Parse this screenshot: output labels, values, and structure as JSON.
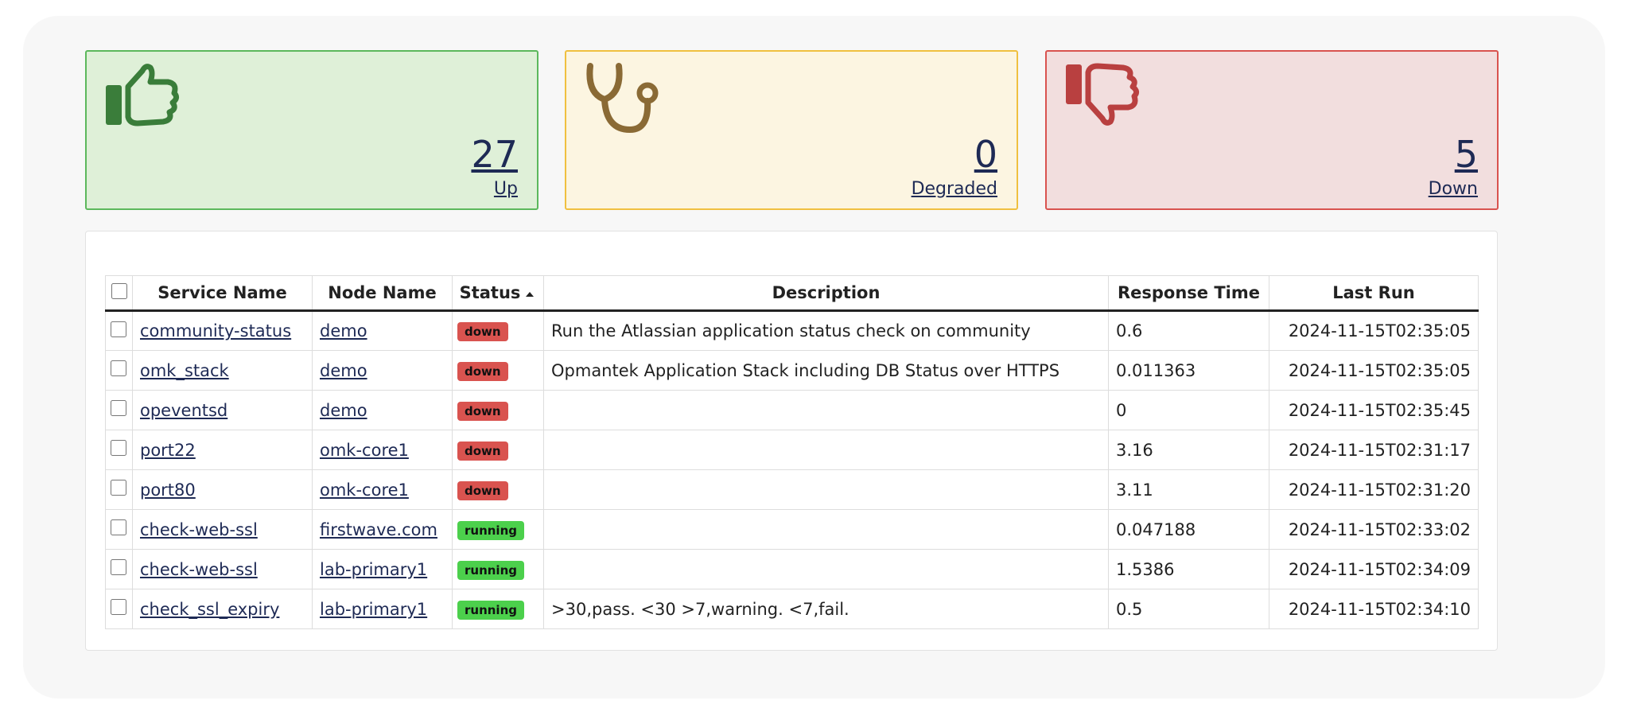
{
  "cards": [
    {
      "count": "27",
      "label": "Up"
    },
    {
      "count": "0",
      "label": "Degraded"
    },
    {
      "count": "5",
      "label": "Down"
    }
  ],
  "table": {
    "headers": [
      "Service Name",
      "Node Name",
      "Status",
      "Description",
      "Response Time",
      "Last Run"
    ],
    "rows": [
      [
        "community-status",
        "demo",
        "down",
        "Run the Atlassian application status check on community",
        "0.6",
        "2024-11-15T02:35:05"
      ],
      [
        "omk_stack",
        "demo",
        "down",
        "Opmantek Application Stack including DB Status over HTTPS",
        "0.011363",
        "2024-11-15T02:35:05"
      ],
      [
        "opeventsd",
        "demo",
        "down",
        "",
        "0",
        "2024-11-15T02:35:45"
      ],
      [
        "port22",
        "omk-core1",
        "down",
        "",
        "3.16",
        "2024-11-15T02:31:17"
      ],
      [
        "port80",
        "omk-core1",
        "down",
        "",
        "3.11",
        "2024-11-15T02:31:20"
      ],
      [
        "check-web-ssl",
        "firstwave.com",
        "running",
        "",
        "0.047188",
        "2024-11-15T02:33:02"
      ],
      [
        "check-web-ssl",
        "lab-primary1",
        "running",
        "",
        "1.5386",
        "2024-11-15T02:34:09"
      ],
      [
        "check_ssl_expiry",
        "lab-primary1",
        "running",
        ">30,pass. <30 >7,warning. <7,fail.",
        "0.5",
        "2024-11-15T02:34:10"
      ]
    ]
  }
}
